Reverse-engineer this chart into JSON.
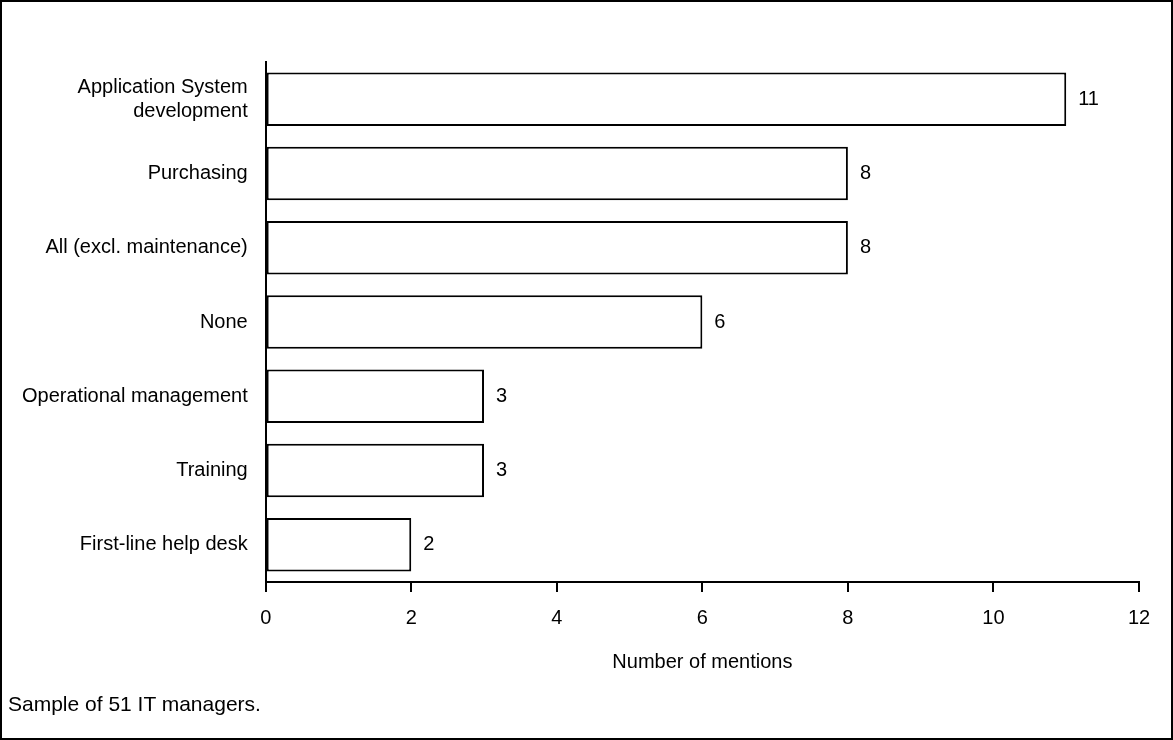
{
  "chart_data": {
    "type": "bar",
    "orientation": "horizontal",
    "xlabel": "Number of mentions",
    "categories": [
      "Application System development",
      "Purchasing",
      "All (excl. maintenance)",
      "None",
      "Operational management",
      "Training",
      "First-line help desk"
    ],
    "values": [
      11,
      8,
      8,
      6,
      3,
      3,
      2
    ],
    "color": "#ffffff",
    "xlim": [
      0,
      12
    ],
    "xticks": [
      0,
      2,
      4,
      6,
      8,
      10,
      12
    ],
    "grid": false,
    "legend": false,
    "data_labels": true,
    "annotations": [
      "Sample of 51 IT managers."
    ]
  }
}
